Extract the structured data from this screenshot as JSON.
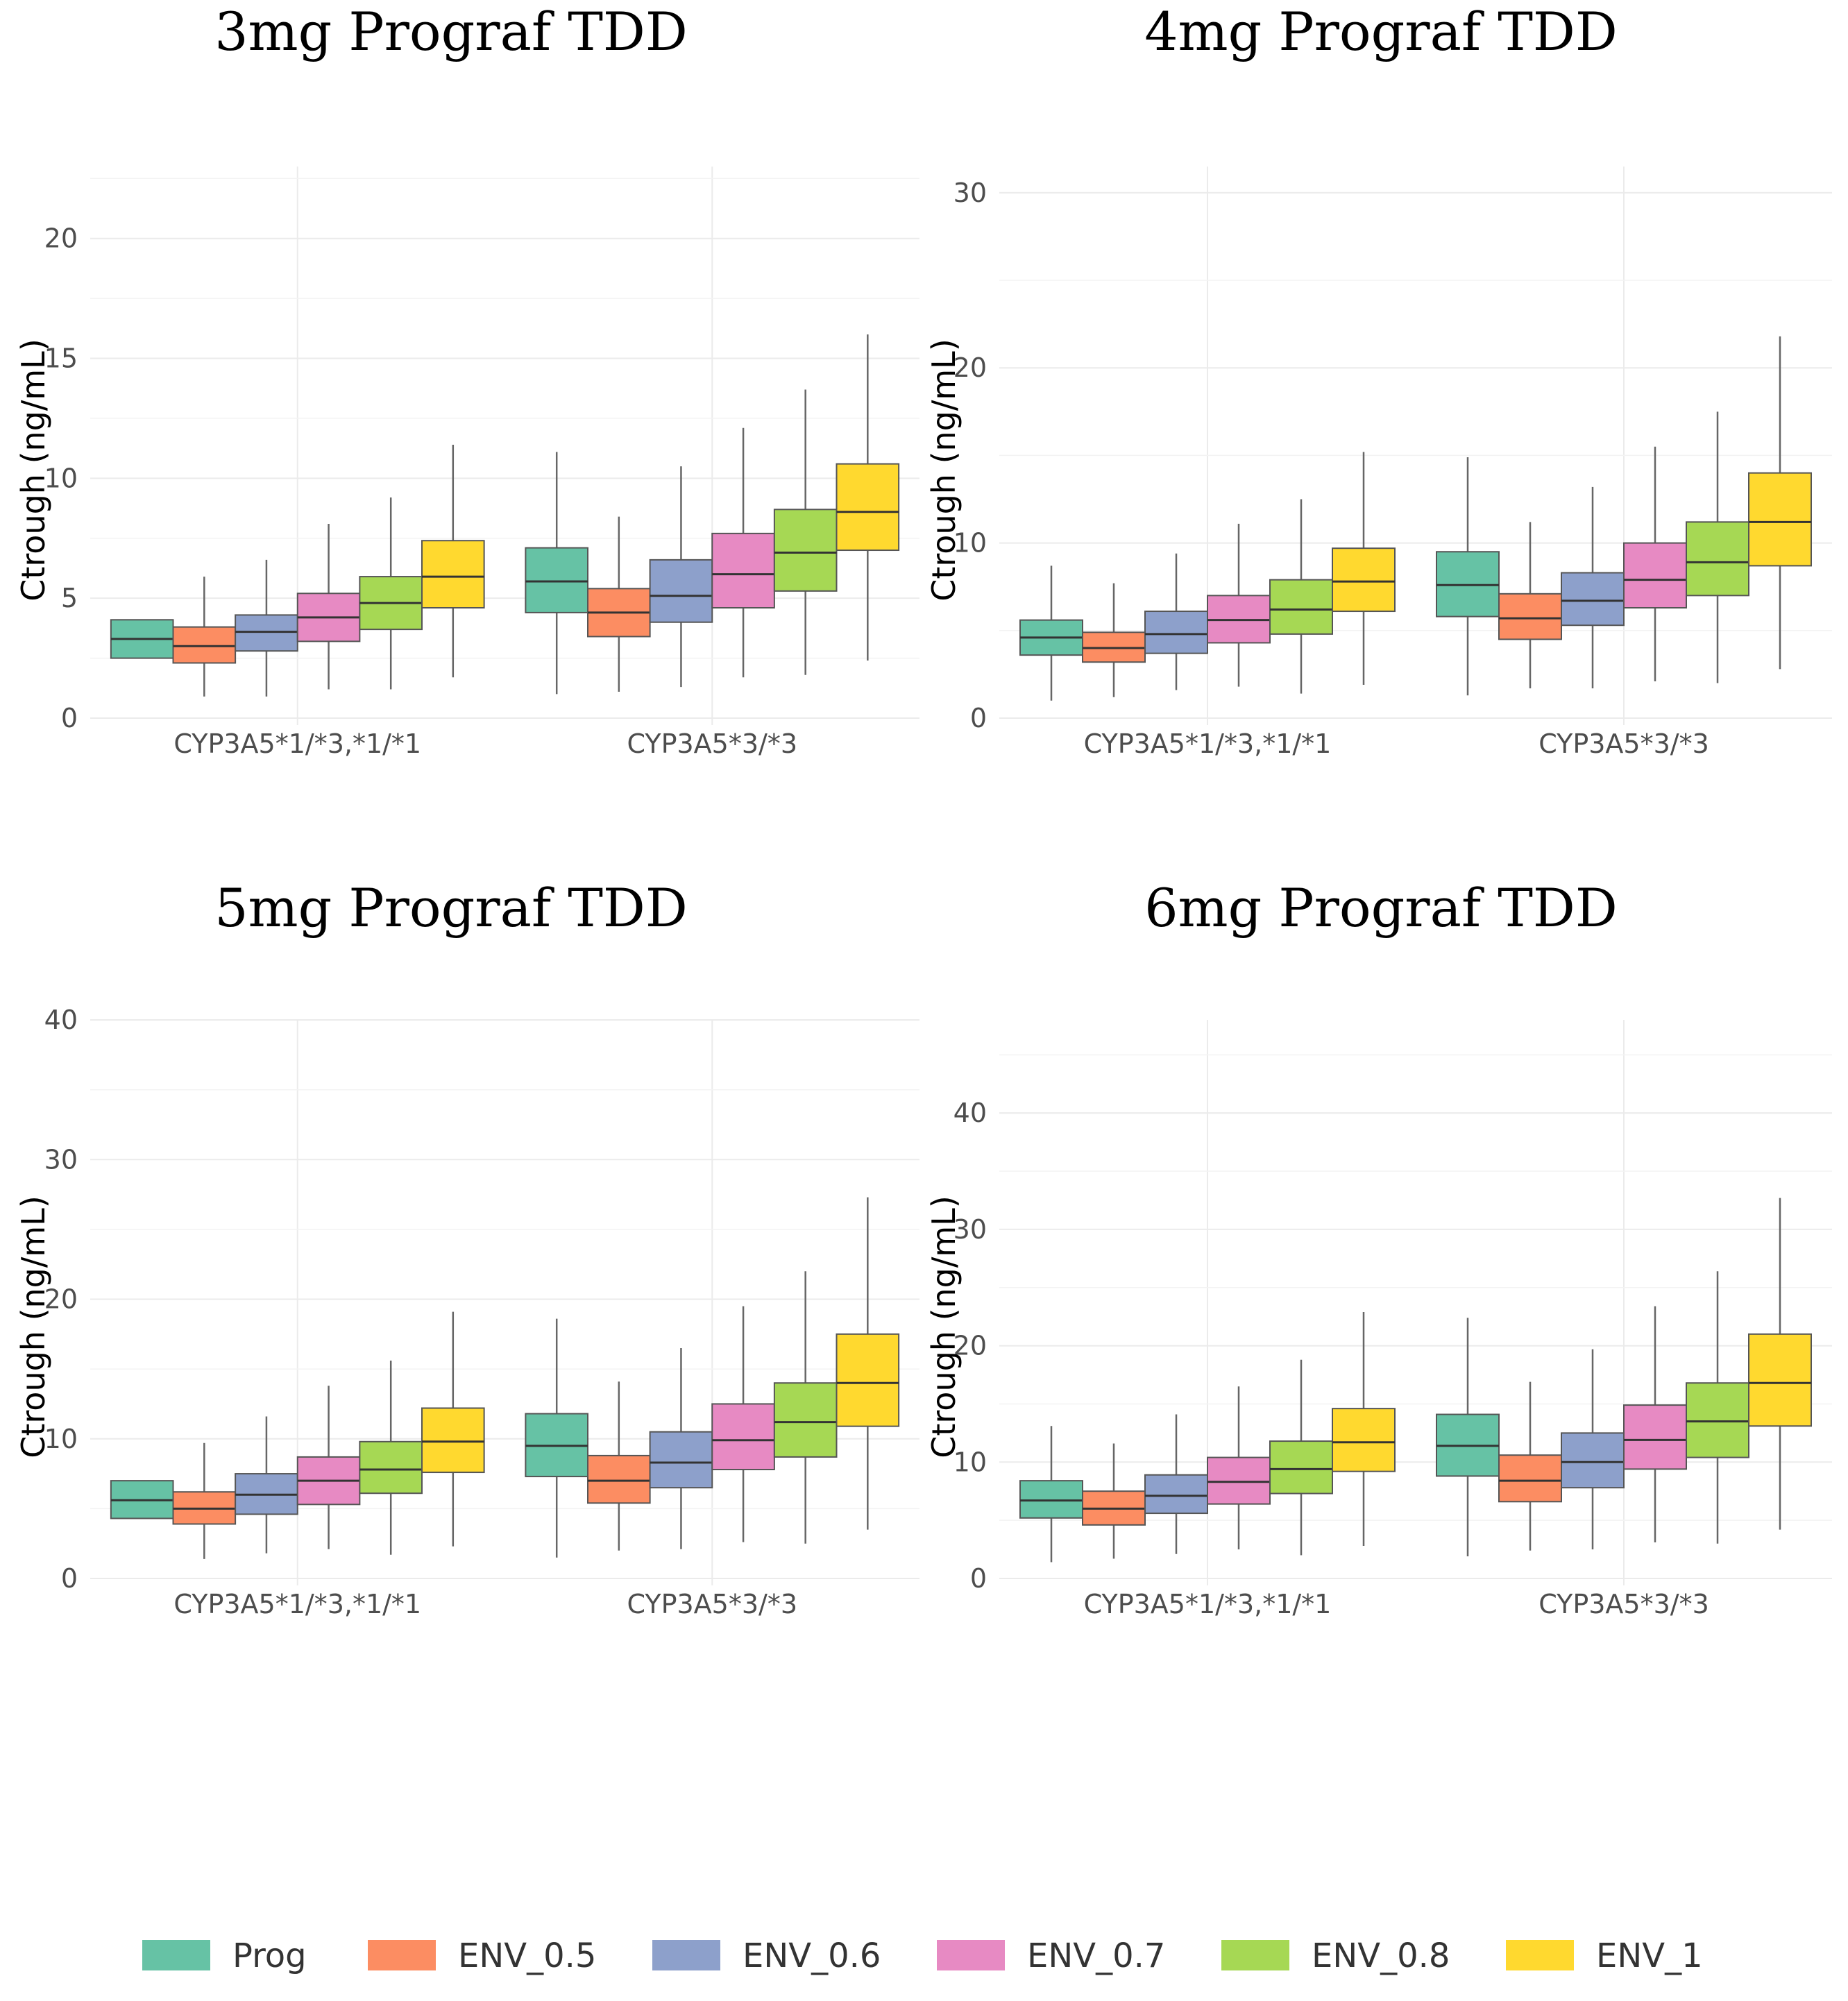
{
  "legend": [
    {
      "name": "Prog",
      "color": "#66C2A5"
    },
    {
      "name": "ENV_0.5",
      "color": "#FC8D62"
    },
    {
      "name": "ENV_0.6",
      "color": "#8DA0CB"
    },
    {
      "name": "ENV_0.7",
      "color": "#E78AC3"
    },
    {
      "name": "ENV_0.8",
      "color": "#A6D854"
    },
    {
      "name": "ENV_1",
      "color": "#FFD92F"
    }
  ],
  "chart_data": [
    {
      "type": "boxplot",
      "title": "3mg Prograf TDD",
      "ylabel": "Ctrough (ng/mL)",
      "xlabel": "",
      "ylim": [
        0,
        23
      ],
      "yticks": [
        0,
        5,
        10,
        15,
        20
      ],
      "categories": [
        "CYP3A5*1/*3,*1/*1",
        "CYP3A5*3/*3"
      ],
      "series": [
        {
          "name": "Prog",
          "boxes": [
            {
              "min": 2.5,
              "q1": 2.5,
              "median": 3.3,
              "q3": 4.1,
              "max": 4.1
            },
            {
              "min": 1.0,
              "q1": 4.4,
              "median": 5.7,
              "q3": 7.1,
              "max": 11.1
            }
          ]
        },
        {
          "name": "ENV_0.5",
          "boxes": [
            {
              "min": 0.9,
              "q1": 2.3,
              "median": 3.0,
              "q3": 3.8,
              "max": 5.9
            },
            {
              "min": 1.1,
              "q1": 3.4,
              "median": 4.4,
              "q3": 5.4,
              "max": 8.4
            }
          ]
        },
        {
          "name": "ENV_0.6",
          "boxes": [
            {
              "min": 0.9,
              "q1": 2.8,
              "median": 3.6,
              "q3": 4.3,
              "max": 6.6
            },
            {
              "min": 1.3,
              "q1": 4.0,
              "median": 5.1,
              "q3": 6.6,
              "max": 10.5
            }
          ]
        },
        {
          "name": "ENV_0.7",
          "boxes": [
            {
              "min": 1.2,
              "q1": 3.2,
              "median": 4.2,
              "q3": 5.2,
              "max": 8.1
            },
            {
              "min": 1.7,
              "q1": 4.6,
              "median": 6.0,
              "q3": 7.7,
              "max": 12.1
            }
          ]
        },
        {
          "name": "ENV_0.8",
          "boxes": [
            {
              "min": 1.2,
              "q1": 3.7,
              "median": 4.8,
              "q3": 5.9,
              "max": 9.2
            },
            {
              "min": 1.8,
              "q1": 5.3,
              "median": 6.9,
              "q3": 8.7,
              "max": 13.7
            }
          ]
        },
        {
          "name": "ENV_1",
          "boxes": [
            {
              "min": 1.7,
              "q1": 4.6,
              "median": 5.9,
              "q3": 7.4,
              "max": 11.4
            },
            {
              "min": 2.4,
              "q1": 7.0,
              "median": 8.6,
              "q3": 10.6,
              "max": 16.0
            }
          ]
        }
      ]
    },
    {
      "type": "boxplot",
      "title": "4mg Prograf TDD",
      "ylabel": "Ctrough (ng/mL)",
      "xlabel": "",
      "ylim": [
        0,
        31.5
      ],
      "yticks": [
        0,
        10,
        20,
        30
      ],
      "categories": [
        "CYP3A5*1/*3,*1/*1",
        "CYP3A5*3/*3"
      ],
      "series": [
        {
          "name": "Prog",
          "boxes": [
            {
              "min": 1.0,
              "q1": 3.6,
              "median": 4.6,
              "q3": 5.6,
              "max": 8.7
            },
            {
              "min": 1.3,
              "q1": 5.8,
              "median": 7.6,
              "q3": 9.5,
              "max": 14.9
            }
          ]
        },
        {
          "name": "ENV_0.5",
          "boxes": [
            {
              "min": 1.2,
              "q1": 3.2,
              "median": 4.0,
              "q3": 4.9,
              "max": 7.7
            },
            {
              "min": 1.7,
              "q1": 4.5,
              "median": 5.7,
              "q3": 7.1,
              "max": 11.2
            }
          ]
        },
        {
          "name": "ENV_0.6",
          "boxes": [
            {
              "min": 1.6,
              "q1": 3.7,
              "median": 4.8,
              "q3": 6.1,
              "max": 9.4
            },
            {
              "min": 1.7,
              "q1": 5.3,
              "median": 6.7,
              "q3": 8.3,
              "max": 13.2
            }
          ]
        },
        {
          "name": "ENV_0.7",
          "boxes": [
            {
              "min": 1.8,
              "q1": 4.3,
              "median": 5.6,
              "q3": 7.0,
              "max": 11.1
            },
            {
              "min": 2.1,
              "q1": 6.3,
              "median": 7.9,
              "q3": 10.0,
              "max": 15.5
            }
          ]
        },
        {
          "name": "ENV_0.8",
          "boxes": [
            {
              "min": 1.4,
              "q1": 4.8,
              "median": 6.2,
              "q3": 7.9,
              "max": 12.5
            },
            {
              "min": 2.0,
              "q1": 7.0,
              "median": 8.9,
              "q3": 11.2,
              "max": 17.5
            }
          ]
        },
        {
          "name": "ENV_1",
          "boxes": [
            {
              "min": 1.9,
              "q1": 6.1,
              "median": 7.8,
              "q3": 9.7,
              "max": 15.2
            },
            {
              "min": 2.8,
              "q1": 8.7,
              "median": 11.2,
              "q3": 14.0,
              "max": 21.8
            }
          ]
        }
      ]
    },
    {
      "type": "boxplot",
      "title": "5mg Prograf TDD",
      "ylabel": "Ctrough (ng/mL)",
      "xlabel": "",
      "ylim": [
        0,
        40
      ],
      "yticks": [
        0,
        10,
        20,
        30,
        40
      ],
      "categories": [
        "CYP3A5*1/*3,*1/*1",
        "CYP3A5*3/*3"
      ],
      "series": [
        {
          "name": "Prog",
          "boxes": [
            {
              "min": 4.3,
              "q1": 4.3,
              "median": 5.6,
              "q3": 7.0,
              "max": 7.0
            },
            {
              "min": 1.5,
              "q1": 7.3,
              "median": 9.5,
              "q3": 11.8,
              "max": 18.6
            }
          ]
        },
        {
          "name": "ENV_0.5",
          "boxes": [
            {
              "min": 1.4,
              "q1": 3.9,
              "median": 5.0,
              "q3": 6.2,
              "max": 9.7
            },
            {
              "min": 2.0,
              "q1": 5.4,
              "median": 7.0,
              "q3": 8.8,
              "max": 14.1
            }
          ]
        },
        {
          "name": "ENV_0.6",
          "boxes": [
            {
              "min": 1.8,
              "q1": 4.6,
              "median": 6.0,
              "q3": 7.5,
              "max": 11.6
            },
            {
              "min": 2.1,
              "q1": 6.5,
              "median": 8.3,
              "q3": 10.5,
              "max": 16.5
            }
          ]
        },
        {
          "name": "ENV_0.7",
          "boxes": [
            {
              "min": 2.1,
              "q1": 5.3,
              "median": 7.0,
              "q3": 8.7,
              "max": 13.8
            },
            {
              "min": 2.6,
              "q1": 7.8,
              "median": 9.9,
              "q3": 12.5,
              "max": 19.5
            }
          ]
        },
        {
          "name": "ENV_0.8",
          "boxes": [
            {
              "min": 1.7,
              "q1": 6.1,
              "median": 7.8,
              "q3": 9.8,
              "max": 15.6
            },
            {
              "min": 2.5,
              "q1": 8.7,
              "median": 11.2,
              "q3": 14.0,
              "max": 22.0
            }
          ]
        },
        {
          "name": "ENV_1",
          "boxes": [
            {
              "min": 2.3,
              "q1": 7.6,
              "median": 9.8,
              "q3": 12.2,
              "max": 19.1
            },
            {
              "min": 3.5,
              "q1": 10.9,
              "median": 14.0,
              "q3": 17.5,
              "max": 27.3
            }
          ]
        }
      ]
    },
    {
      "type": "boxplot",
      "title": "6mg Prograf TDD",
      "ylabel": "Ctrough (ng/mL)",
      "xlabel": "",
      "ylim": [
        0,
        48
      ],
      "yticks": [
        0,
        10,
        20,
        30,
        40
      ],
      "categories": [
        "CYP3A5*1/*3,*1/*1",
        "CYP3A5*3/*3"
      ],
      "series": [
        {
          "name": "Prog",
          "boxes": [
            {
              "min": 1.4,
              "q1": 5.2,
              "median": 6.7,
              "q3": 8.4,
              "max": 13.1
            },
            {
              "min": 1.9,
              "q1": 8.8,
              "median": 11.4,
              "q3": 14.1,
              "max": 22.4
            }
          ]
        },
        {
          "name": "ENV_0.5",
          "boxes": [
            {
              "min": 1.7,
              "q1": 4.6,
              "median": 6.0,
              "q3": 7.5,
              "max": 11.6
            },
            {
              "min": 2.4,
              "q1": 6.6,
              "median": 8.4,
              "q3": 10.6,
              "max": 16.9
            }
          ]
        },
        {
          "name": "ENV_0.6",
          "boxes": [
            {
              "min": 2.1,
              "q1": 5.6,
              "median": 7.1,
              "q3": 8.9,
              "max": 14.1
            },
            {
              "min": 2.5,
              "q1": 7.8,
              "median": 10.0,
              "q3": 12.5,
              "max": 19.7
            }
          ]
        },
        {
          "name": "ENV_0.7",
          "boxes": [
            {
              "min": 2.5,
              "q1": 6.4,
              "median": 8.3,
              "q3": 10.4,
              "max": 16.5
            },
            {
              "min": 3.1,
              "q1": 9.4,
              "median": 11.9,
              "q3": 14.9,
              "max": 23.4
            }
          ]
        },
        {
          "name": "ENV_0.8",
          "boxes": [
            {
              "min": 2.0,
              "q1": 7.3,
              "median": 9.4,
              "q3": 11.8,
              "max": 18.8
            },
            {
              "min": 3.0,
              "q1": 10.4,
              "median": 13.5,
              "q3": 16.8,
              "max": 26.4
            }
          ]
        },
        {
          "name": "ENV_1",
          "boxes": [
            {
              "min": 2.8,
              "q1": 9.2,
              "median": 11.7,
              "q3": 14.6,
              "max": 22.9
            },
            {
              "min": 4.2,
              "q1": 13.1,
              "median": 16.8,
              "q3": 21.0,
              "max": 32.7
            }
          ]
        }
      ]
    }
  ]
}
